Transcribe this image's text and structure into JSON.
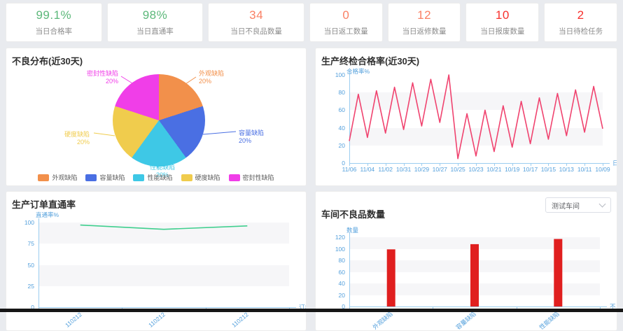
{
  "kpi_cards": [
    {
      "value": "99.1%",
      "label": "当日合格率",
      "color": "#5cb87a"
    },
    {
      "value": "98%",
      "label": "当日直通率",
      "color": "#5cb87a"
    },
    {
      "value": "34",
      "label": "当日不良品数量",
      "color": "#fa8064"
    },
    {
      "value": "0",
      "label": "当日返工数量",
      "color": "#fa8064"
    },
    {
      "value": "12",
      "label": "当日返修数量",
      "color": "#fa8064"
    },
    {
      "value": "10",
      "label": "当日报废数量",
      "color": "#f7302c"
    },
    {
      "value": "2",
      "label": "当日待检任务",
      "color": "#f7302c"
    }
  ],
  "workshop_select": {
    "value": "测试车间",
    "icon": "chevron-down-icon"
  },
  "chart_data": [
    {
      "type": "pie",
      "title": "不良分布(近30天)",
      "legend_position": "bottom",
      "slices": [
        {
          "name": "外观缺陷",
          "value": 20,
          "unit": "%",
          "color": "#f2904b"
        },
        {
          "name": "容量缺陷",
          "value": 20,
          "unit": "%",
          "color": "#4a6fe3"
        },
        {
          "name": "性能缺陷",
          "value": 20,
          "unit": "%",
          "color": "#3ec8e6"
        },
        {
          "name": "硬度缺陷",
          "value": 20,
          "unit": "%",
          "color": "#f0cc4d"
        },
        {
          "name": "密封性缺陷",
          "value": 20,
          "unit": "%",
          "color": "#f03ee8"
        }
      ]
    },
    {
      "type": "line",
      "title": "生产终检合格率(近30天)",
      "ylabel": "合格率%",
      "xlabel": "日期",
      "ylim": [
        0,
        100
      ],
      "yticks": [
        0,
        20,
        40,
        60,
        80,
        100
      ],
      "x_tick_labels": [
        "11/06",
        "11/04",
        "11/02",
        "10/31",
        "10/29",
        "10/27",
        "10/25",
        "10/23",
        "10/21",
        "10/19",
        "10/17",
        "10/15",
        "10/13",
        "10/11",
        "10/09"
      ],
      "values": [
        25,
        78,
        29,
        82,
        34,
        86,
        38,
        91,
        42,
        95,
        46,
        100,
        5,
        56,
        8,
        60,
        13,
        65,
        18,
        70,
        22,
        74,
        27,
        79,
        31,
        83,
        35,
        87,
        39
      ],
      "line_color": "#f0436f",
      "axis_color": "#54a0dc",
      "grid": "striped"
    },
    {
      "type": "line",
      "title": "生产订单直通率",
      "ylabel": "直通率%",
      "xlabel": "订单",
      "ylim": [
        0,
        100
      ],
      "yticks": [
        0,
        25,
        50,
        75,
        100
      ],
      "x_tick_labels": [
        "110212",
        "110212",
        "110212"
      ],
      "values": [
        97,
        92,
        96
      ],
      "line_color": "#3fcf8e",
      "axis_color": "#54a0dc",
      "grid": "striped"
    },
    {
      "type": "bar",
      "title": "车间不良品数量",
      "ylabel": "数量",
      "xlabel": "不良",
      "ylim": [
        0,
        120
      ],
      "yticks": [
        0,
        20,
        40,
        60,
        80,
        100,
        120
      ],
      "x_tick_labels": [
        "外观缺陷",
        "容量缺陷",
        "性能缺陷"
      ],
      "values": [
        99,
        108,
        117
      ],
      "bar_color": "#e01f1f",
      "axis_color": "#54a0dc",
      "grid": "striped"
    }
  ]
}
